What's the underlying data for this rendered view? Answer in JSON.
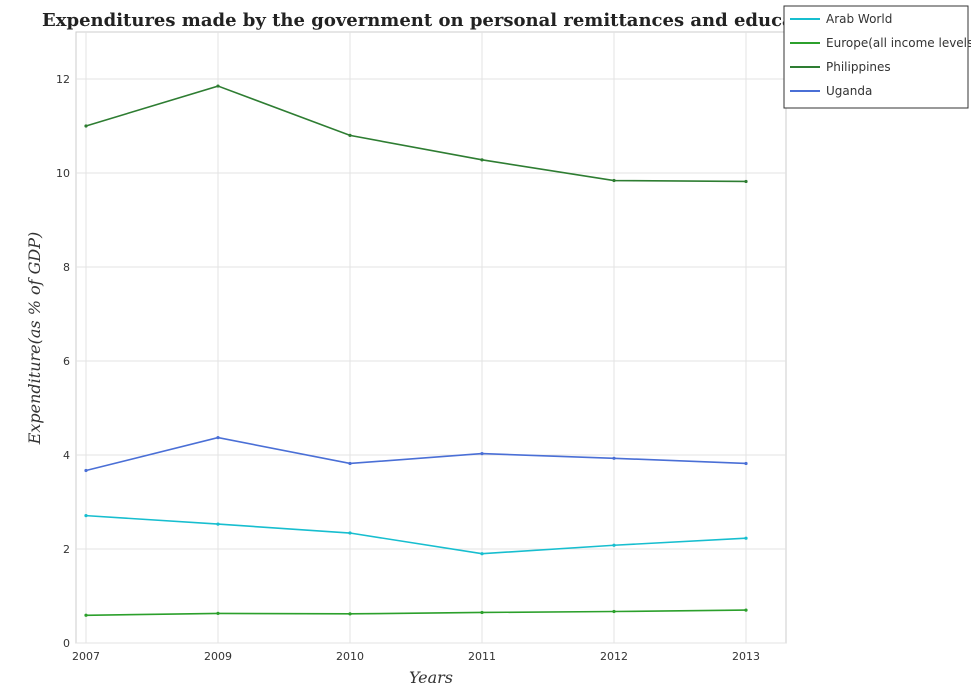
{
  "chart_data": {
    "type": "line",
    "title": "Expenditures made by the government on personal remittances and education",
    "xlabel": "Years",
    "ylabel": "Expenditure(as % of GDP)",
    "categories": [
      "2007",
      "2009",
      "2010",
      "2011",
      "2012",
      "2013"
    ],
    "ylim": [
      0,
      13
    ],
    "yticks": [
      "0",
      "2",
      "4",
      "6",
      "8",
      "10",
      "12"
    ],
    "grid": true,
    "legend_position": "top-right",
    "series": [
      {
        "name": "Arab World",
        "color": "#17becf",
        "values": [
          2.71,
          2.53,
          2.34,
          1.9,
          2.08,
          2.23
        ]
      },
      {
        "name": "Europe(all income levels)",
        "color": "#2ca02c",
        "values": [
          0.59,
          0.63,
          0.62,
          0.65,
          0.67,
          0.7
        ]
      },
      {
        "name": "Philippines",
        "color": "#2e7d32",
        "values": [
          11.0,
          11.85,
          10.8,
          10.28,
          9.84,
          9.82
        ]
      },
      {
        "name": "Uganda",
        "color": "#4a6fd6",
        "values": [
          3.67,
          4.37,
          3.82,
          4.03,
          3.93,
          3.82
        ]
      }
    ]
  }
}
